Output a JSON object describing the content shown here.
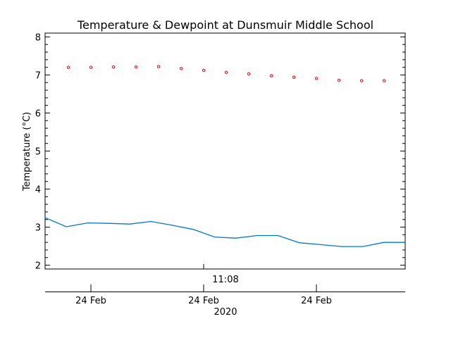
{
  "chart_data": {
    "type": "line",
    "title": "Temperature & Dewpoint at Dunsmuir Middle School",
    "ylabel": "Temperature (°C)",
    "ylim": [
      1.9,
      8.1
    ],
    "yticks": [
      2,
      3,
      4,
      5,
      6,
      7,
      8
    ],
    "time_label": "11:08",
    "date_ticks": [
      "24 Feb",
      "24 Feb",
      "24 Feb"
    ],
    "year_label": "2020",
    "series": [
      {
        "style": "points",
        "color": "#ff0000",
        "values": [
          7.2,
          7.2,
          7.21,
          7.21,
          7.22,
          7.17,
          7.12,
          7.07,
          7.03,
          6.98,
          6.94,
          6.91,
          6.86,
          6.85,
          6.85
        ]
      },
      {
        "style": "line",
        "color": "#0077cc",
        "values": [
          3.25,
          3.01,
          3.11,
          3.1,
          3.08,
          3.15,
          3.05,
          2.94,
          2.74,
          2.71,
          2.78,
          2.78,
          2.59,
          2.54,
          2.49,
          2.49,
          2.6,
          2.6
        ]
      }
    ]
  }
}
